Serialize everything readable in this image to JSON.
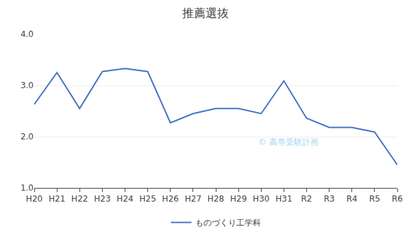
{
  "chart_data": {
    "type": "line",
    "title": "推薦選抜",
    "categories": [
      "H20",
      "H21",
      "H22",
      "H23",
      "H24",
      "H25",
      "H26",
      "H27",
      "H28",
      "H29",
      "H30",
      "H31",
      "R2",
      "R3",
      "R4",
      "R5",
      "R6"
    ],
    "series": [
      {
        "name": "ものづくり工学科",
        "color": "#4472C4",
        "values": [
          2.63,
          3.25,
          2.55,
          3.27,
          3.33,
          3.27,
          2.27,
          2.45,
          2.55,
          2.55,
          2.45,
          3.09,
          2.36,
          2.18,
          2.18,
          2.09,
          1.45
        ]
      }
    ],
    "ylim": [
      1.0,
      4.0
    ],
    "yticks": [
      {
        "value": 1.0,
        "label": "1.0"
      },
      {
        "value": 2.0,
        "label": "2.0"
      },
      {
        "value": 3.0,
        "label": "3.0"
      },
      {
        "value": 4.0,
        "label": "4.0"
      }
    ],
    "grid": true,
    "legend": "bottom",
    "annotations": [
      "© 高専受験計画"
    ]
  }
}
